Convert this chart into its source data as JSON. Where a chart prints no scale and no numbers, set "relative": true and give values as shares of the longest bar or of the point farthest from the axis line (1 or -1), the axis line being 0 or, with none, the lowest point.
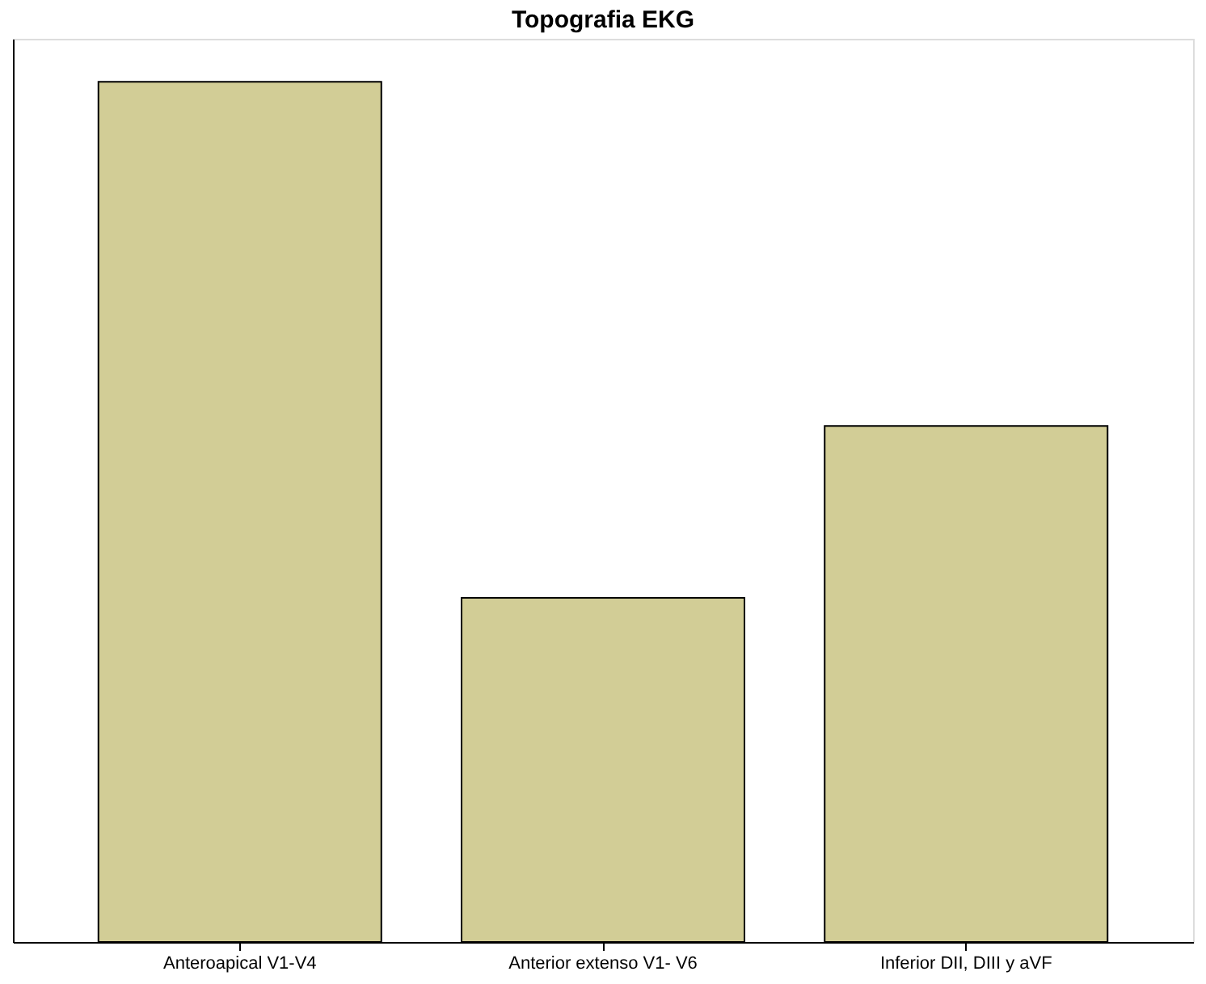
{
  "chart_data": {
    "type": "bar",
    "title": "Topografia EKG",
    "relative": true,
    "categories": [
      "Anteroapical V1-V4",
      "Anterior extenso V1- V6",
      "Inferior DII, DIII y aVF"
    ],
    "values": [
      1,
      0.4,
      0.6
    ],
    "color": "#d2cd96",
    "grid": false
  }
}
